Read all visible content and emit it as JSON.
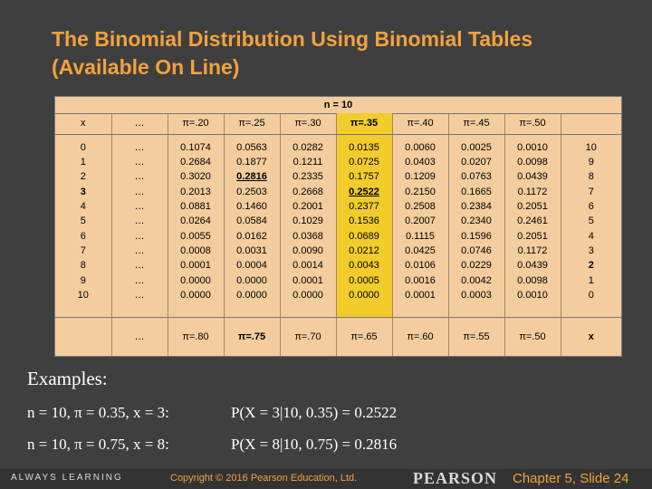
{
  "title": "The Binomial Distribution Using Binomial Tables (Available On Line)",
  "table": {
    "n_label": "n = 10",
    "header": [
      "x",
      "…",
      "π=.20",
      "π=.25",
      "π=.30",
      "π=.35",
      "π=.40",
      "π=.45",
      "π=.50",
      ""
    ],
    "x_values": "0\n1\n2\n3\n4\n5\n6\n7\n8\n9\n10",
    "ellipsis_col": "…\n…\n…\n…\n…\n…\n…\n…\n…\n…\n…",
    "columns": [
      "0.1074\n0.2684\n0.3020\n0.2013\n0.0881\n0.0264\n0.0055\n0.0008\n0.0001\n0.0000\n0.0000",
      "0.0563\n0.1877\n0.2816\n0.2503\n0.1460\n0.0584\n0.0162\n0.0031\n0.0004\n0.0000\n0.0000",
      "0.0282\n0.1211\n0.2335\n0.2668\n0.2001\n0.1029\n0.0368\n0.0090\n0.0014\n0.0001\n0.0000",
      "0.0135\n0.0725\n0.1757\n0.2522\n0.2377\n0.1536\n0.0689\n0.0212\n0.0043\n0.0005\n0.0000",
      "0.0060\n0.0403\n0.1209\n0.2150\n0.2508\n0.2007\n0.1115\n0.0425\n0.0106\n0.0016\n0.0001",
      "0.0025\n0.0207\n0.0763\n0.1665\n0.2384\n0.2340\n0.1596\n0.0746\n0.0229\n0.0042\n0.0003",
      "0.0010\n0.0098\n0.0439\n0.1172\n0.2051\n0.2461\n0.2051\n0.1172\n0.0439\n0.0098\n0.0010"
    ],
    "x_values_right": "10\n9\n8\n7\n6\n5\n4\n3\n2\n1\n0",
    "footer": [
      "",
      "…",
      "π=.80",
      "π=.75",
      "π=.70",
      "π=.65",
      "π=.60",
      "π=.55",
      "π=.50",
      "x"
    ],
    "highlight_color": "#f2cc2b"
  },
  "examples": {
    "label": "Examples:",
    "rows": [
      {
        "lhs": "n = 10, π = 0.35, x = 3:",
        "rhs": "P(X = 3|10, 0.35) = 0.2522"
      },
      {
        "lhs": "n = 10, π = 0.75, x = 8:",
        "rhs": "P(X = 8|10, 0.75) = 0.2816"
      }
    ]
  },
  "footer": {
    "brand": "ALWAYS LEARNING",
    "copyright": "Copyright © 2016 Pearson Education, Ltd.",
    "publisher": "PEARSON",
    "slide": "Chapter 5, Slide 24"
  }
}
